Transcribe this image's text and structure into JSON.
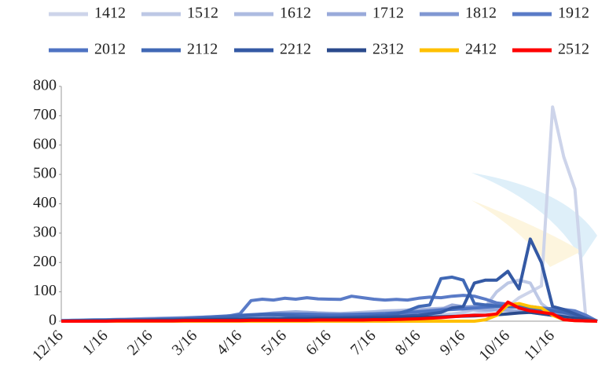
{
  "chart_data": {
    "type": "line",
    "categories": [
      "12/16",
      null,
      null,
      null,
      "1/16",
      null,
      null,
      null,
      "2/16",
      null,
      null,
      null,
      "3/16",
      null,
      null,
      null,
      "4/16",
      null,
      null,
      null,
      "5/16",
      null,
      null,
      null,
      "6/16",
      null,
      null,
      null,
      "7/16",
      null,
      null,
      null,
      "8/16",
      null,
      null,
      null,
      "9/16",
      null,
      null,
      null,
      "10/16",
      null,
      null,
      null,
      "11/16",
      null,
      null,
      null,
      null
    ],
    "ylim": [
      0,
      800
    ],
    "yticks": [
      0,
      100,
      200,
      300,
      400,
      500,
      600,
      700,
      800
    ],
    "series": [
      {
        "name": "1412",
        "color": "#cdd4ea",
        "values": [
          0,
          0,
          0,
          1,
          1,
          1,
          2,
          2,
          2,
          3,
          3,
          3,
          4,
          4,
          4,
          5,
          5,
          5,
          6,
          6,
          6,
          7,
          7,
          7,
          8,
          8,
          8,
          9,
          9,
          10,
          10,
          11,
          12,
          13,
          15,
          17,
          20,
          25,
          30,
          40,
          50,
          80,
          100,
          120,
          730,
          560,
          450,
          0,
          0
        ]
      },
      {
        "name": "1512",
        "color": "#bdc8e5",
        "values": [
          0,
          1,
          1,
          2,
          2,
          3,
          3,
          4,
          4,
          5,
          5,
          6,
          6,
          7,
          7,
          8,
          8,
          9,
          9,
          10,
          10,
          11,
          11,
          12,
          12,
          13,
          13,
          14,
          14,
          15,
          15,
          16,
          18,
          20,
          22,
          25,
          30,
          40,
          50,
          100,
          130,
          140,
          130,
          60,
          30,
          15,
          5,
          0,
          0
        ]
      },
      {
        "name": "1612",
        "color": "#adbbe1",
        "values": [
          2,
          3,
          4,
          5,
          5,
          6,
          7,
          8,
          9,
          10,
          10,
          11,
          12,
          13,
          14,
          15,
          18,
          20,
          22,
          25,
          28,
          30,
          30,
          28,
          27,
          26,
          28,
          30,
          32,
          35,
          36,
          38,
          40,
          42,
          44,
          45,
          40,
          38,
          36,
          40,
          45,
          50,
          40,
          30,
          20,
          15,
          10,
          5,
          0
        ]
      },
      {
        "name": "1712",
        "color": "#99aada",
        "values": [
          1,
          2,
          3,
          4,
          5,
          6,
          7,
          8,
          9,
          10,
          11,
          12,
          13,
          14,
          15,
          16,
          18,
          20,
          24,
          28,
          30,
          32,
          30,
          28,
          26,
          25,
          24,
          25,
          26,
          28,
          30,
          32,
          35,
          38,
          40,
          55,
          50,
          45,
          40,
          38,
          36,
          35,
          30,
          25,
          20,
          15,
          10,
          5,
          0
        ]
      },
      {
        "name": "1812",
        "color": "#8097d2",
        "values": [
          1,
          2,
          2,
          3,
          3,
          4,
          4,
          5,
          5,
          6,
          6,
          7,
          8,
          9,
          10,
          12,
          14,
          16,
          18,
          20,
          22,
          22,
          20,
          20,
          20,
          21,
          22,
          22,
          23,
          24,
          25,
          28,
          30,
          35,
          40,
          45,
          48,
          50,
          55,
          60,
          55,
          50,
          40,
          30,
          25,
          20,
          15,
          8,
          0
        ]
      },
      {
        "name": "1912",
        "color": "#5a7bc7",
        "values": [
          2,
          3,
          3,
          4,
          4,
          5,
          5,
          6,
          6,
          7,
          8,
          9,
          10,
          12,
          14,
          18,
          25,
          70,
          75,
          72,
          78,
          75,
          80,
          76,
          75,
          74,
          85,
          80,
          75,
          72,
          74,
          72,
          78,
          82,
          80,
          85,
          88,
          85,
          75,
          62,
          58,
          55,
          50,
          45,
          42,
          40,
          35,
          20,
          0
        ]
      },
      {
        "name": "2012",
        "color": "#4e73c3",
        "values": [
          1,
          2,
          3,
          4,
          4,
          5,
          5,
          6,
          7,
          8,
          9,
          10,
          12,
          14,
          16,
          18,
          20,
          22,
          24,
          25,
          25,
          24,
          24,
          23,
          22,
          22,
          23,
          24,
          25,
          26,
          28,
          30,
          32,
          35,
          38,
          40,
          42,
          45,
          48,
          50,
          52,
          50,
          45,
          40,
          35,
          30,
          22,
          10,
          0
        ]
      },
      {
        "name": "2112",
        "color": "#4068b5",
        "values": [
          1,
          1,
          2,
          2,
          3,
          3,
          4,
          4,
          5,
          5,
          6,
          7,
          8,
          10,
          12,
          15,
          18,
          20,
          22,
          22,
          20,
          18,
          16,
          15,
          14,
          14,
          15,
          16,
          18,
          20,
          25,
          35,
          50,
          55,
          145,
          150,
          140,
          60,
          55,
          52,
          50,
          48,
          45,
          40,
          35,
          30,
          20,
          10,
          0
        ]
      },
      {
        "name": "2212",
        "color": "#3459a4",
        "values": [
          0,
          1,
          1,
          2,
          2,
          2,
          3,
          3,
          3,
          4,
          4,
          5,
          5,
          6,
          6,
          7,
          7,
          8,
          8,
          9,
          9,
          10,
          10,
          11,
          11,
          12,
          12,
          13,
          14,
          15,
          16,
          18,
          20,
          25,
          30,
          45,
          50,
          130,
          140,
          140,
          170,
          110,
          280,
          200,
          50,
          40,
          25,
          10,
          0
        ]
      },
      {
        "name": "2312",
        "color": "#2a4a8c",
        "values": [
          0,
          0,
          1,
          1,
          1,
          2,
          2,
          2,
          3,
          3,
          3,
          4,
          4,
          4,
          5,
          5,
          5,
          6,
          6,
          6,
          7,
          7,
          7,
          8,
          8,
          8,
          9,
          9,
          10,
          10,
          11,
          12,
          13,
          14,
          15,
          16,
          17,
          18,
          20,
          22,
          25,
          28,
          30,
          25,
          20,
          15,
          10,
          5,
          0
        ]
      },
      {
        "name": "2412",
        "color": "#ffc000",
        "values": [
          0,
          0,
          0,
          0,
          0,
          0,
          0,
          0,
          0,
          0,
          0,
          0,
          0,
          0,
          0,
          0,
          0,
          0,
          0,
          0,
          0,
          0,
          0,
          0,
          0,
          0,
          0,
          0,
          0,
          0,
          0,
          0,
          0,
          0,
          0,
          0,
          0,
          0,
          5,
          20,
          55,
          60,
          50,
          45,
          20,
          5,
          2,
          1,
          0
        ]
      },
      {
        "name": "2512",
        "color": "#ff0000",
        "values": [
          0,
          0,
          0,
          0,
          0,
          1,
          1,
          1,
          1,
          1,
          1,
          2,
          2,
          2,
          2,
          2,
          2,
          3,
          3,
          3,
          3,
          3,
          3,
          4,
          4,
          4,
          4,
          4,
          5,
          5,
          6,
          7,
          8,
          10,
          12,
          15,
          18,
          20,
          20,
          25,
          65,
          45,
          35,
          30,
          25,
          5,
          2,
          1,
          0
        ]
      }
    ]
  }
}
